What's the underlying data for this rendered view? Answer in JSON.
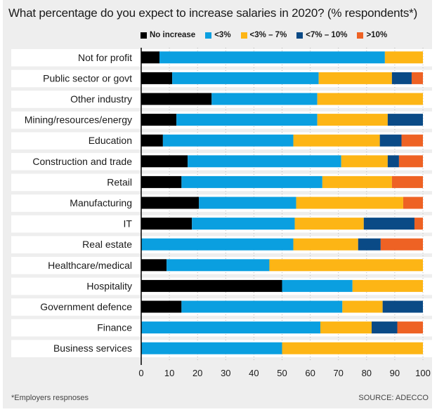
{
  "chart_data": {
    "type": "bar",
    "orientation": "horizontal",
    "stacked": true,
    "title": "What percentage do you expect to increase salaries in 2020? (% respondents*)",
    "xlabel": "",
    "ylabel": "",
    "xlim": [
      0,
      100
    ],
    "xticks": [
      "0",
      "10",
      "20",
      "30",
      "40",
      "50",
      "60",
      "70",
      "80",
      "90",
      "100"
    ],
    "grid": true,
    "legend_position": "top",
    "categories": [
      "Not for profit",
      "Public sector or govt",
      "Other industry",
      "Mining/resources/energy",
      "Education",
      "Construction and trade",
      "Retail",
      "Manufacturing",
      "IT",
      "Real estate",
      "Healthcare/medical",
      "Hospitality",
      "Government defence",
      "Finance",
      "Business services"
    ],
    "series": [
      {
        "name": "No increase",
        "color": "#000000",
        "values": [
          6.5,
          11,
          25,
          12.5,
          7.7,
          16.5,
          14.3,
          20.5,
          18,
          0,
          9,
          50,
          14.3,
          0,
          0
        ]
      },
      {
        "name": "<3%",
        "color": "#0a9fe0",
        "values": [
          80,
          52,
          37.5,
          50,
          46.3,
          54.5,
          50,
          34.5,
          36.5,
          54,
          36.5,
          25,
          57.1,
          63.6,
          50
        ]
      },
      {
        "name": "<3% – 7%",
        "color": "#fdb515",
        "values": [
          13.5,
          26,
          37.5,
          25,
          30.7,
          16.5,
          24.7,
          38,
          24.5,
          23,
          54.5,
          25,
          14.3,
          18.2,
          50
        ]
      },
      {
        "name": "<7% – 10%",
        "color": "#0a4a86",
        "values": [
          0,
          7,
          0,
          12.5,
          7.7,
          4,
          0,
          0,
          18,
          8,
          0,
          0,
          14.3,
          9.1,
          0
        ]
      },
      {
        "name": ">10%",
        "color": "#ee6224",
        "values": [
          0,
          4,
          0,
          0,
          7.6,
          8.5,
          11,
          7,
          3,
          15,
          0,
          0,
          0,
          9.1,
          0
        ]
      }
    ],
    "footnote": "*Employers respnoses",
    "source": "SOURCE: ADECCO"
  }
}
